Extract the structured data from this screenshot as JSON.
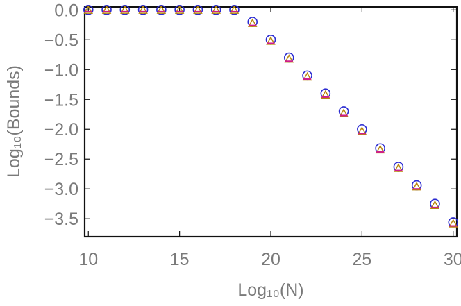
{
  "chart_data": {
    "type": "scatter",
    "xlabel": "Log₁₀(N)",
    "ylabel": "Log₁₀(Bounds)",
    "xlim": [
      9.8,
      30.2
    ],
    "ylim": [
      -3.8,
      0.05
    ],
    "xticks": [
      10,
      15,
      20,
      25,
      30
    ],
    "yticks": [
      0.0,
      -0.5,
      -1.0,
      -1.5,
      -2.0,
      -2.5,
      -3.0,
      -3.5
    ],
    "xtick_labels": [
      "10",
      "15",
      "20",
      "25",
      "30"
    ],
    "ytick_labels": [
      "0.0",
      "−0.5",
      "−1.0",
      "−1.5",
      "−2.0",
      "−2.5",
      "−3.0",
      "−3.5"
    ],
    "grid": false,
    "series": [
      {
        "marker": "circle",
        "color": "#2b2bd1",
        "x": [
          10,
          11,
          12,
          13,
          14,
          15,
          16,
          17,
          18,
          19,
          20,
          21,
          22,
          23,
          24,
          25,
          26,
          27,
          28,
          29,
          30
        ],
        "y": [
          0.0,
          0.0,
          0.0,
          0.0,
          0.0,
          0.0,
          0.0,
          0.0,
          0.0,
          -0.2,
          -0.5,
          -0.8,
          -1.1,
          -1.4,
          -1.7,
          -2.0,
          -2.32,
          -2.63,
          -2.94,
          -3.25,
          -3.56
        ]
      },
      {
        "marker": "triangle",
        "color": "#b8860b",
        "x": [
          10,
          11,
          12,
          13,
          14,
          15,
          16,
          17,
          18,
          19,
          20,
          21,
          22,
          23,
          24,
          25,
          26,
          27,
          28,
          29,
          30
        ],
        "y": [
          -0.01,
          -0.01,
          -0.01,
          -0.01,
          -0.01,
          -0.01,
          -0.01,
          -0.01,
          -0.01,
          -0.23,
          -0.53,
          -0.83,
          -1.13,
          -1.43,
          -1.74,
          -2.04,
          -2.35,
          -2.66,
          -2.97,
          -3.28,
          -3.59
        ]
      },
      {
        "marker": "underline",
        "color": "#d01c8b",
        "x": [
          10,
          11,
          12,
          13,
          14,
          15,
          16,
          17,
          18,
          19,
          20,
          21,
          22,
          23,
          24,
          25,
          26,
          27,
          28,
          29,
          30
        ],
        "y": [
          -0.03,
          -0.03,
          -0.03,
          -0.03,
          -0.03,
          -0.03,
          -0.03,
          -0.03,
          -0.03,
          -0.26,
          -0.56,
          -0.86,
          -1.16,
          -1.46,
          -1.77,
          -2.07,
          -2.38,
          -2.69,
          -3.0,
          -3.31,
          -3.62
        ]
      }
    ]
  }
}
